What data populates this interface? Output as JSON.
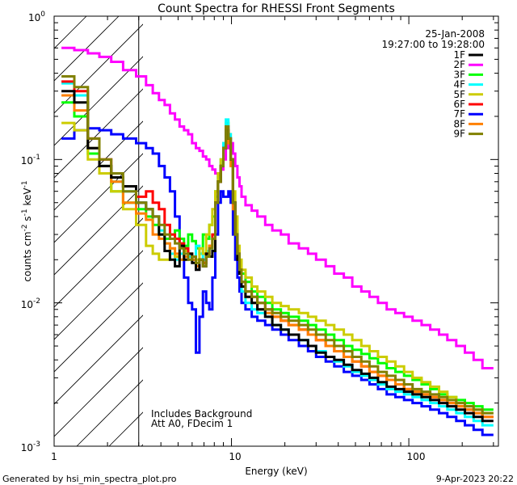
{
  "chart_data": {
    "type": "line",
    "title": "Count Spectra for RHESSI Front Segments",
    "xlabel": "Energy (keV)",
    "ylabel_main": "counts cm",
    "ylabel_exp1": "-2",
    "ylabel_mid": " s",
    "ylabel_exp2": "-1",
    "ylabel_end": " keV",
    "ylabel_exp3": "-1",
    "xscale": "log",
    "yscale": "log",
    "xlim": [
      1,
      320
    ],
    "ylim": [
      0.001,
      1
    ],
    "x_ticks": [
      {
        "value": 1,
        "label": "1"
      },
      {
        "value": 10,
        "label": "10"
      },
      {
        "value": 100,
        "label": "100"
      }
    ],
    "y_ticks": [
      {
        "value": 1,
        "base": "10",
        "exp": "0"
      },
      {
        "value": 0.1,
        "base": "10",
        "exp": "-1"
      },
      {
        "value": 0.01,
        "base": "10",
        "exp": "-2"
      },
      {
        "value": 0.001,
        "base": "10",
        "exp": "-3"
      }
    ],
    "date": "25-Jan-2008",
    "time_range": "19:27:00 to 19:28:00",
    "annotation_line1": "Includes Background",
    "annotation_line2": "Att A0, FDecim 1",
    "hatch_xmax": 3,
    "energy_edges": [
      1.1,
      1.3,
      1.55,
      1.8,
      2.1,
      2.45,
      2.9,
      3.3,
      3.6,
      3.9,
      4.2,
      4.5,
      4.8,
      5.1,
      5.4,
      5.7,
      6.0,
      6.3,
      6.6,
      6.9,
      7.2,
      7.5,
      7.8,
      8.1,
      8.4,
      8.7,
      9.0,
      9.3,
      9.6,
      9.9,
      10.2,
      10.5,
      10.8,
      11.1,
      11.4,
      12.0,
      13.0,
      14.0,
      15.5,
      17.0,
      19.0,
      21.0,
      24.0,
      27.0,
      30.0,
      34.0,
      38.0,
      43.0,
      48.0,
      54.0,
      60.0,
      67.0,
      75.0,
      84.0,
      94.0,
      105.0,
      118.0,
      132.0,
      148.0,
      165.0,
      185.0,
      207.0,
      232.0,
      260.0,
      300.0
    ],
    "series": [
      {
        "name": "1F",
        "color": "#000000",
        "values": [
          0.3,
          0.25,
          0.12,
          0.09,
          0.075,
          0.065,
          0.05,
          0.045,
          0.04,
          0.03,
          0.023,
          0.02,
          0.018,
          0.025,
          0.02,
          0.022,
          0.019,
          0.017,
          0.02,
          0.018,
          0.022,
          0.021,
          0.023,
          0.05,
          0.07,
          0.09,
          0.12,
          0.16,
          0.14,
          0.1,
          0.05,
          0.03,
          0.02,
          0.016,
          0.013,
          0.011,
          0.01,
          0.009,
          0.008,
          0.007,
          0.0065,
          0.006,
          0.0055,
          0.005,
          0.0045,
          0.0042,
          0.004,
          0.0037,
          0.0034,
          0.0032,
          0.003,
          0.0028,
          0.0026,
          0.0025,
          0.0024,
          0.0023,
          0.0022,
          0.0021,
          0.002,
          0.0019,
          0.0018,
          0.0017,
          0.0016,
          0.0015
        ]
      },
      {
        "name": "2F",
        "color": "#ff00ff",
        "values": [
          0.6,
          0.58,
          0.55,
          0.52,
          0.48,
          0.42,
          0.38,
          0.33,
          0.29,
          0.26,
          0.24,
          0.21,
          0.19,
          0.17,
          0.16,
          0.15,
          0.13,
          0.12,
          0.115,
          0.105,
          0.1,
          0.09,
          0.085,
          0.08,
          0.075,
          0.085,
          0.1,
          0.12,
          0.14,
          0.13,
          0.11,
          0.09,
          0.075,
          0.065,
          0.055,
          0.048,
          0.044,
          0.04,
          0.035,
          0.032,
          0.03,
          0.026,
          0.024,
          0.022,
          0.02,
          0.018,
          0.016,
          0.015,
          0.013,
          0.012,
          0.011,
          0.01,
          0.009,
          0.0085,
          0.008,
          0.0075,
          0.007,
          0.0065,
          0.006,
          0.0055,
          0.005,
          0.0045,
          0.004,
          0.0035
        ]
      },
      {
        "name": "3F",
        "color": "#00ff00",
        "values": [
          0.25,
          0.2,
          0.11,
          0.08,
          0.06,
          0.05,
          0.045,
          0.04,
          0.035,
          0.03,
          0.028,
          0.03,
          0.032,
          0.028,
          0.025,
          0.03,
          0.027,
          0.024,
          0.022,
          0.03,
          0.028,
          0.035,
          0.04,
          0.06,
          0.08,
          0.1,
          0.13,
          0.18,
          0.15,
          0.1,
          0.05,
          0.032,
          0.022,
          0.018,
          0.016,
          0.014,
          0.012,
          0.011,
          0.01,
          0.009,
          0.0085,
          0.008,
          0.0075,
          0.007,
          0.0065,
          0.006,
          0.0055,
          0.005,
          0.0047,
          0.0044,
          0.0041,
          0.0038,
          0.0035,
          0.0033,
          0.0031,
          0.0029,
          0.0027,
          0.0025,
          0.0023,
          0.0022,
          0.0021,
          0.002,
          0.0019,
          0.0018
        ]
      },
      {
        "name": "4F",
        "color": "#00ffff",
        "values": [
          0.34,
          0.28,
          0.12,
          0.09,
          0.07,
          0.06,
          0.05,
          0.045,
          0.04,
          0.032,
          0.026,
          0.022,
          0.02,
          0.022,
          0.024,
          0.021,
          0.02,
          0.025,
          0.022,
          0.02,
          0.023,
          0.024,
          0.03,
          0.055,
          0.075,
          0.095,
          0.13,
          0.19,
          0.15,
          0.1,
          0.05,
          0.03,
          0.021,
          0.016,
          0.012,
          0.01,
          0.009,
          0.0085,
          0.008,
          0.007,
          0.0065,
          0.006,
          0.0055,
          0.005,
          0.0046,
          0.0042,
          0.0039,
          0.0036,
          0.0033,
          0.0031,
          0.0029,
          0.0027,
          0.0025,
          0.0024,
          0.0023,
          0.0022,
          0.0021,
          0.002,
          0.0019,
          0.0018,
          0.0017,
          0.0016,
          0.0015,
          0.0014
        ]
      },
      {
        "name": "5F",
        "color": "#cccc00",
        "values": [
          0.18,
          0.16,
          0.1,
          0.08,
          0.06,
          0.045,
          0.035,
          0.025,
          0.022,
          0.02,
          0.02,
          0.024,
          0.021,
          0.02,
          0.023,
          0.022,
          0.021,
          0.02,
          0.024,
          0.022,
          0.03,
          0.035,
          0.045,
          0.06,
          0.08,
          0.1,
          0.12,
          0.15,
          0.13,
          0.1,
          0.06,
          0.04,
          0.025,
          0.02,
          0.017,
          0.015,
          0.013,
          0.012,
          0.011,
          0.01,
          0.0095,
          0.009,
          0.0085,
          0.008,
          0.0075,
          0.007,
          0.0065,
          0.006,
          0.0055,
          0.005,
          0.0046,
          0.0042,
          0.0039,
          0.0036,
          0.0033,
          0.003,
          0.0028,
          0.0026,
          0.0024,
          0.0022,
          0.002,
          0.0019,
          0.0018,
          0.0017
        ]
      },
      {
        "name": "6F",
        "color": "#ff0000",
        "values": [
          0.35,
          0.3,
          0.14,
          0.1,
          0.075,
          0.065,
          0.055,
          0.06,
          0.05,
          0.045,
          0.035,
          0.03,
          0.028,
          0.026,
          0.024,
          0.022,
          0.02,
          0.018,
          0.02,
          0.019,
          0.022,
          0.025,
          0.03,
          0.05,
          0.07,
          0.09,
          0.12,
          0.17,
          0.14,
          0.1,
          0.05,
          0.03,
          0.022,
          0.017,
          0.014,
          0.012,
          0.011,
          0.01,
          0.009,
          0.008,
          0.0075,
          0.007,
          0.0065,
          0.006,
          0.0055,
          0.005,
          0.0046,
          0.0042,
          0.0039,
          0.0036,
          0.0033,
          0.0031,
          0.0029,
          0.0027,
          0.0025,
          0.0024,
          0.0023,
          0.0022,
          0.0021,
          0.002,
          0.0019,
          0.0018,
          0.0017,
          0.0016
        ]
      },
      {
        "name": "7F",
        "color": "#0000ff",
        "values": [
          0.14,
          0.16,
          0.165,
          0.16,
          0.15,
          0.14,
          0.13,
          0.12,
          0.11,
          0.09,
          0.075,
          0.06,
          0.04,
          0.025,
          0.015,
          0.01,
          0.009,
          0.0045,
          0.008,
          0.012,
          0.01,
          0.009,
          0.015,
          0.03,
          0.05,
          0.06,
          0.055,
          0.055,
          0.06,
          0.05,
          0.03,
          0.02,
          0.015,
          0.012,
          0.01,
          0.009,
          0.008,
          0.0075,
          0.007,
          0.0065,
          0.006,
          0.0055,
          0.005,
          0.0046,
          0.0042,
          0.0039,
          0.0036,
          0.0033,
          0.0031,
          0.0029,
          0.0027,
          0.0025,
          0.0023,
          0.0022,
          0.0021,
          0.002,
          0.0019,
          0.0018,
          0.0017,
          0.0016,
          0.0015,
          0.0014,
          0.0013,
          0.0012
        ]
      },
      {
        "name": "8F",
        "color": "#ff8000",
        "values": [
          0.28,
          0.22,
          0.12,
          0.09,
          0.07,
          0.05,
          0.042,
          0.038,
          0.03,
          0.028,
          0.026,
          0.024,
          0.022,
          0.02,
          0.021,
          0.022,
          0.02,
          0.018,
          0.02,
          0.019,
          0.022,
          0.025,
          0.028,
          0.05,
          0.07,
          0.09,
          0.12,
          0.16,
          0.13,
          0.09,
          0.045,
          0.03,
          0.021,
          0.016,
          0.013,
          0.011,
          0.01,
          0.009,
          0.0085,
          0.008,
          0.0075,
          0.007,
          0.0065,
          0.006,
          0.0055,
          0.005,
          0.0046,
          0.0042,
          0.0039,
          0.0036,
          0.0033,
          0.0031,
          0.0029,
          0.0027,
          0.0025,
          0.0024,
          0.0023,
          0.0022,
          0.0021,
          0.002,
          0.0019,
          0.0018,
          0.0017,
          0.0016
        ]
      },
      {
        "name": "9F",
        "color": "#808000",
        "values": [
          0.38,
          0.32,
          0.14,
          0.1,
          0.08,
          0.06,
          0.05,
          0.045,
          0.04,
          0.035,
          0.03,
          0.028,
          0.026,
          0.024,
          0.022,
          0.02,
          0.021,
          0.019,
          0.02,
          0.018,
          0.021,
          0.024,
          0.028,
          0.05,
          0.07,
          0.09,
          0.12,
          0.17,
          0.14,
          0.1,
          0.05,
          0.03,
          0.022,
          0.017,
          0.014,
          0.012,
          0.011,
          0.01,
          0.009,
          0.0085,
          0.008,
          0.0075,
          0.007,
          0.0065,
          0.006,
          0.0055,
          0.005,
          0.0046,
          0.0042,
          0.0039,
          0.0036,
          0.0033,
          0.0031,
          0.0029,
          0.0027,
          0.0025,
          0.0024,
          0.0023,
          0.0022,
          0.0021,
          0.002,
          0.0019,
          0.0018,
          0.0017
        ]
      }
    ]
  },
  "footer": {
    "generated_by": "Generated by hsi_min_spectra_plot.pro",
    "timestamp": "9-Apr-2023 20:22"
  }
}
